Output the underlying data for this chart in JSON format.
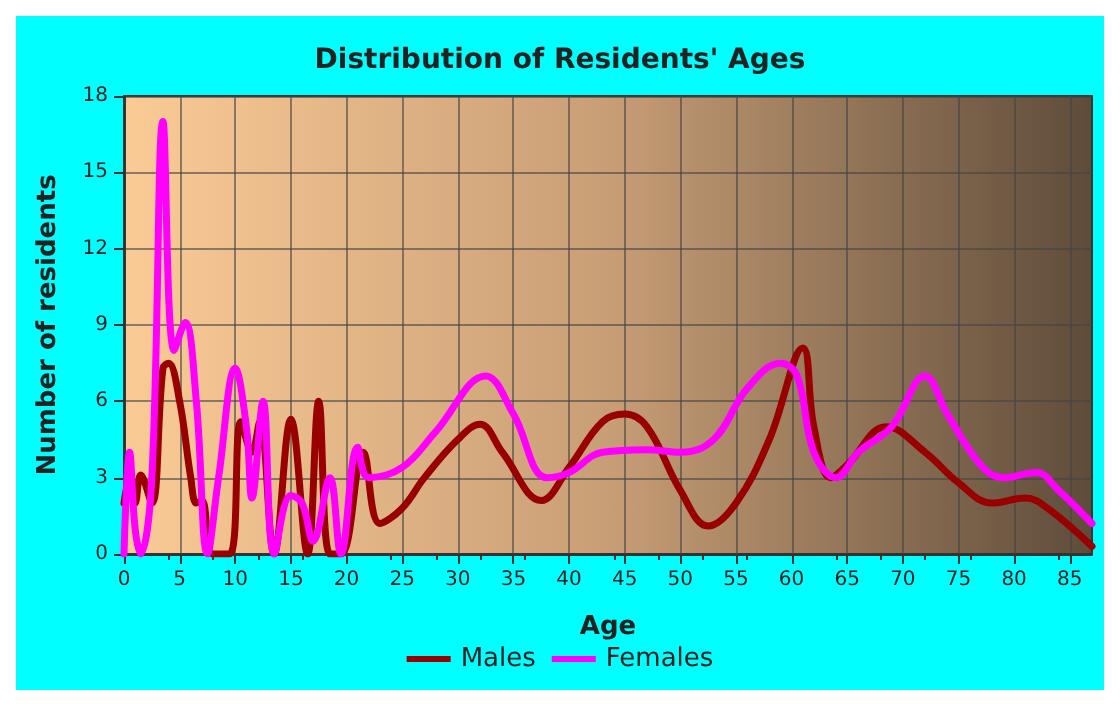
{
  "chart_data": {
    "type": "line",
    "title": "Distribution of Residents' Ages",
    "xlabel": "Age",
    "ylabel": "Number of residents",
    "xlim": [
      0,
      87
    ],
    "xticks": [
      0,
      5,
      10,
      15,
      20,
      25,
      30,
      35,
      40,
      45,
      50,
      55,
      60,
      65,
      70,
      75,
      80,
      85
    ],
    "ylim": [
      0,
      18
    ],
    "yticks": [
      0,
      3,
      6,
      9,
      12,
      15,
      18
    ],
    "grid": true,
    "legend": "bottom",
    "marker": "none",
    "line_style": "solid",
    "series": [
      {
        "name": "Males",
        "color": "#990000",
        "x": [
          0,
          0.5,
          1,
          1.5,
          2.5,
          3.5,
          4,
          5,
          6,
          6.5,
          7,
          8,
          9.5,
          10.5,
          11.5,
          12.2,
          13.5,
          15,
          16.5,
          17.5,
          18.5,
          19.5,
          21.5,
          23,
          25,
          27,
          30,
          32,
          34,
          37.5,
          40,
          43,
          45,
          47,
          50,
          52.5,
          55,
          58,
          61,
          62,
          63.5,
          65,
          68.5,
          72,
          75,
          78,
          81,
          83,
          87
        ],
        "values": [
          2,
          3,
          2,
          3.1,
          2,
          7.3,
          7.5,
          6,
          3,
          2,
          2.1,
          0,
          0,
          5.2,
          4,
          5.2,
          0,
          5.3,
          0,
          6,
          0,
          0,
          4,
          1.2,
          1.8,
          3,
          4.5,
          5.1,
          4,
          2.1,
          3.4,
          5.2,
          5.5,
          5,
          2.5,
          1.1,
          2,
          4.5,
          8.1,
          5,
          3,
          3.5,
          5,
          4,
          2.8,
          2,
          2.2,
          1.8,
          0.3
        ]
      },
      {
        "name": "Females",
        "color": "#ff00ff",
        "x": [
          0,
          0.5,
          1,
          1.5,
          2.5,
          3.5,
          4.5,
          5.5,
          6.5,
          7.5,
          8.5,
          10,
          11,
          11.5,
          12.5,
          13.5,
          15,
          16,
          17,
          18.5,
          19.5,
          21,
          22,
          25,
          28,
          32.5,
          35,
          38,
          40,
          43,
          47,
          50,
          53,
          56,
          59,
          60.5,
          62,
          64,
          66,
          69,
          72,
          74,
          77,
          79,
          82,
          84,
          87
        ],
        "values": [
          0,
          4,
          1,
          0,
          3,
          17,
          8,
          9.1,
          6,
          0,
          3,
          7.3,
          5,
          2.2,
          6,
          0,
          2.3,
          2,
          0.5,
          3,
          0,
          4.2,
          3,
          3.4,
          4.8,
          7,
          5.5,
          3,
          3.2,
          4,
          4.1,
          4,
          4.5,
          6.5,
          7.5,
          7,
          4,
          3,
          4,
          5,
          7,
          5.5,
          3.5,
          3,
          3.2,
          2.5,
          1.2
        ]
      }
    ]
  }
}
